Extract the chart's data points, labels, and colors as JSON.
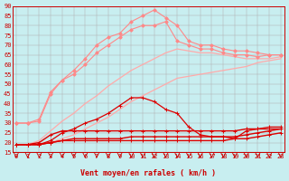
{
  "bg_color": "#c8eef0",
  "grid_color": "#b0b0b0",
  "xlabel": "Vent moyen/en rafales ( km/h )",
  "x_ticks": [
    0,
    1,
    2,
    3,
    4,
    5,
    6,
    7,
    8,
    9,
    10,
    11,
    12,
    13,
    14,
    15,
    16,
    17,
    18,
    19,
    20,
    21,
    22,
    23
  ],
  "ylim": [
    15,
    90
  ],
  "yticks": [
    15,
    20,
    25,
    30,
    35,
    40,
    45,
    50,
    55,
    60,
    65,
    70,
    75,
    80,
    85,
    90
  ],
  "series": [
    {
      "label": "smooth_lower",
      "color": "#ffaaaa",
      "lw": 0.9,
      "marker": null,
      "data_y": [
        19,
        19,
        19,
        20,
        22,
        24,
        27,
        30,
        33,
        37,
        41,
        44,
        47,
        50,
        53,
        54,
        55,
        56,
        57,
        58,
        59,
        61,
        62,
        63
      ]
    },
    {
      "label": "smooth_upper",
      "color": "#ffaaaa",
      "lw": 0.9,
      "marker": null,
      "data_y": [
        19,
        19,
        21,
        26,
        31,
        35,
        40,
        44,
        49,
        53,
        57,
        60,
        63,
        66,
        68,
        67,
        66,
        66,
        65,
        64,
        63,
        63,
        63,
        64
      ]
    },
    {
      "label": "pink_markers_upper",
      "color": "#ff8888",
      "lw": 0.8,
      "marker": "D",
      "ms": 2,
      "data_y": [
        30,
        30,
        32,
        46,
        52,
        57,
        63,
        70,
        74,
        76,
        82,
        85,
        88,
        84,
        80,
        72,
        70,
        70,
        68,
        67,
        67,
        66,
        65,
        65
      ]
    },
    {
      "label": "pink_markers_lower",
      "color": "#ff8888",
      "lw": 0.8,
      "marker": "D",
      "ms": 2,
      "data_y": [
        30,
        30,
        31,
        45,
        52,
        55,
        60,
        66,
        70,
        74,
        78,
        80,
        80,
        82,
        72,
        70,
        68,
        68,
        66,
        65,
        65,
        64,
        65,
        65
      ]
    },
    {
      "label": "red_hump",
      "color": "#dd0000",
      "lw": 0.9,
      "marker": "+",
      "ms": 3,
      "data_y": [
        19,
        19,
        19,
        21,
        25,
        27,
        30,
        32,
        35,
        39,
        43,
        43,
        41,
        37,
        35,
        28,
        24,
        23,
        23,
        22,
        26,
        27,
        28,
        28
      ]
    },
    {
      "label": "red_flat1",
      "color": "#dd0000",
      "lw": 1.0,
      "marker": "+",
      "ms": 3,
      "data_y": [
        19,
        19,
        19,
        20,
        21,
        22,
        22,
        22,
        22,
        22,
        23,
        23,
        23,
        23,
        23,
        23,
        23,
        23,
        23,
        23,
        24,
        25,
        26,
        27
      ]
    },
    {
      "label": "red_flat2",
      "color": "#dd0000",
      "lw": 1.0,
      "marker": "+",
      "ms": 3,
      "data_y": [
        19,
        19,
        20,
        24,
        26,
        26,
        26,
        26,
        26,
        26,
        26,
        26,
        26,
        26,
        26,
        26,
        26,
        26,
        26,
        26,
        27,
        27,
        27,
        27
      ]
    },
    {
      "label": "red_flat3",
      "color": "#dd0000",
      "lw": 1.0,
      "marker": "+",
      "ms": 3,
      "data_y": [
        19,
        19,
        19,
        20,
        21,
        21,
        21,
        21,
        21,
        21,
        21,
        21,
        21,
        21,
        21,
        21,
        21,
        21,
        21,
        22,
        22,
        23,
        24,
        25
      ]
    }
  ],
  "arrow_color": "#cc0000",
  "tick_fontsize": 5.0,
  "xlabel_fontsize": 6.0
}
